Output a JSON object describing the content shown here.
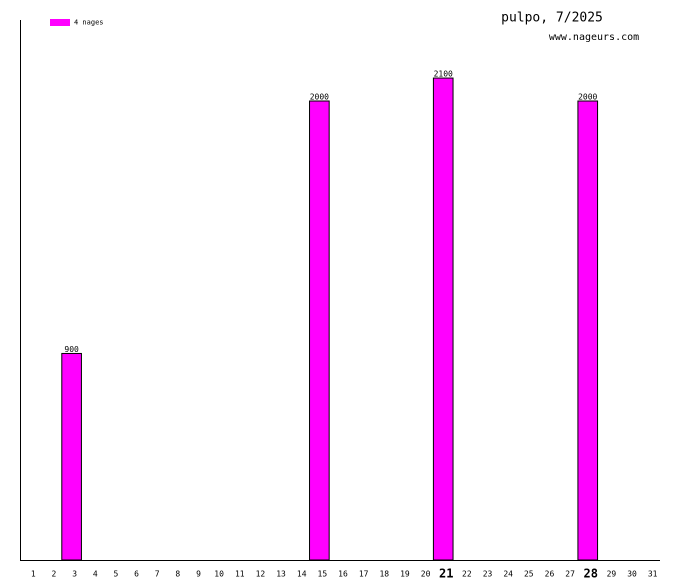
{
  "chart_data": {
    "type": "bar",
    "title": "pulpo, 7/2025",
    "subtitle": "www.nageurs.com",
    "categories": [
      "1",
      "2",
      "3",
      "4",
      "5",
      "6",
      "7",
      "8",
      "9",
      "10",
      "11",
      "12",
      "13",
      "14",
      "15",
      "16",
      "17",
      "18",
      "19",
      "20",
      "21",
      "22",
      "23",
      "24",
      "25",
      "26",
      "27",
      "28",
      "29",
      "30",
      "31"
    ],
    "series": [
      {
        "name": "4 nages",
        "color": "#ff00ff",
        "values": [
          null,
          null,
          900,
          null,
          null,
          null,
          null,
          null,
          null,
          null,
          null,
          null,
          null,
          null,
          2000,
          null,
          null,
          null,
          null,
          null,
          2100,
          null,
          null,
          null,
          null,
          null,
          null,
          2000,
          null,
          null,
          null
        ]
      }
    ],
    "ylim": [
      0,
      2353
    ],
    "bold_ticks": [
      20,
      27
    ]
  }
}
